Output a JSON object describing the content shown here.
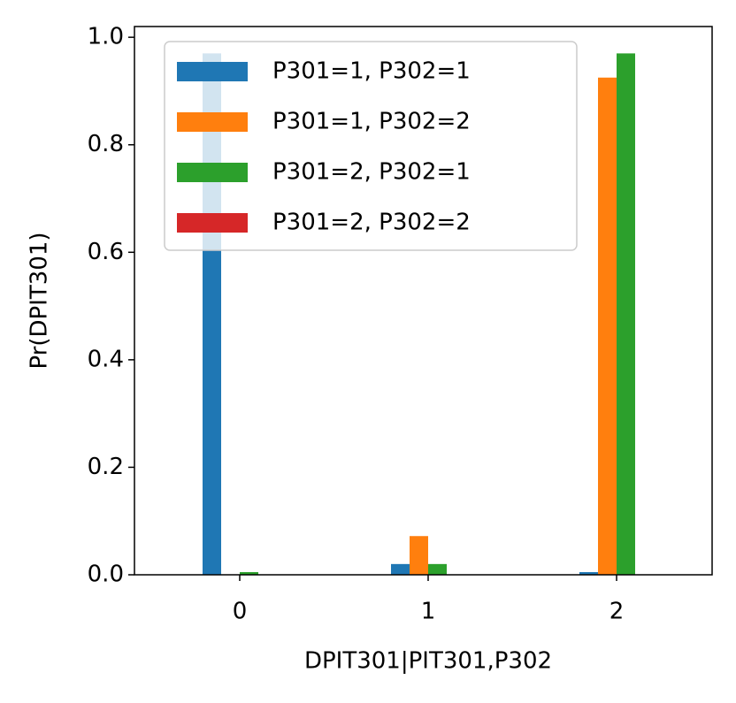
{
  "chart_data": {
    "type": "bar",
    "categories": [
      "0",
      "1",
      "2"
    ],
    "xlabel": "DPIT301|PIT301,P302",
    "ylabel": "Pr(DPIT301)",
    "ylim": [
      0,
      1.02
    ],
    "yticks": [
      {
        "value": 0,
        "label": "0.0"
      },
      0.2,
      0.4,
      0.6,
      0.8,
      {
        "value": 1,
        "label": "1.0"
      }
    ],
    "grid": false,
    "legend": "upper left",
    "series": [
      {
        "name": "P301=1, P302=1",
        "color": "#1f77b4",
        "values": [
          0.97,
          0.02,
          0.005
        ]
      },
      {
        "name": "P301=1, P302=2",
        "color": "#ff7f0e",
        "values": [
          0,
          0.072,
          0.925
        ]
      },
      {
        "name": "P301=2, P302=1",
        "color": "#2ca02c",
        "values": [
          0.005,
          0.02,
          0.97
        ]
      },
      {
        "name": "P301=2, P302=2",
        "color": "#d62728",
        "values": [
          0,
          0,
          0
        ]
      }
    ]
  }
}
